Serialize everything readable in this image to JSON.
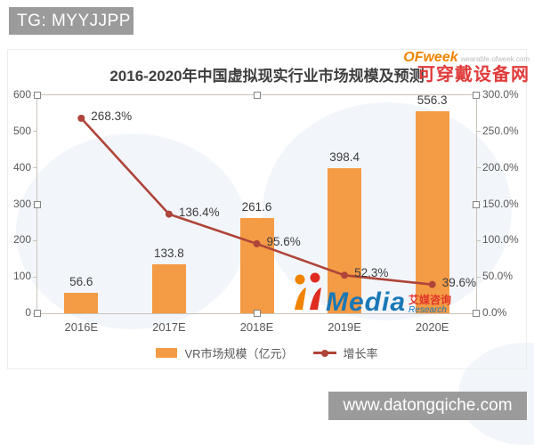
{
  "page": {
    "tg_label": "TG: MYYJJPP",
    "site_label": "www.datongqiche.com"
  },
  "watermarks": {
    "ofweek_brand": "OFweek",
    "ofweek_domain": "wearable.ofweek.com",
    "ofweek_site": "可穿戴设备网",
    "iimedia_brand": "Media",
    "iimedia_cn": "艾媒咨询",
    "iimedia_en": "Research"
  },
  "chart_data": {
    "type": "bar",
    "combo": true,
    "title": "2016-2020年中国虚拟现实行业市场规模及预测",
    "categories": [
      "2016E",
      "2017E",
      "2018E",
      "2019E",
      "2020E"
    ],
    "series": [
      {
        "name": "VR市场规模（亿元）",
        "chart_type": "bar",
        "axis": "left",
        "color": "#F49B45",
        "values": [
          56.6,
          133.8,
          261.6,
          398.4,
          556.3
        ]
      },
      {
        "name": "增长率",
        "chart_type": "line",
        "axis": "right",
        "color": "#AF4439",
        "unit": "%",
        "values": [
          268.3,
          136.4,
          95.6,
          52.3,
          39.6
        ]
      }
    ],
    "left_axis": {
      "min": 0,
      "max": 600,
      "step": 100,
      "ticks": [
        600,
        500,
        400,
        300,
        200,
        100,
        0
      ]
    },
    "right_axis": {
      "min": 0,
      "max": 300,
      "step": 50,
      "unit": "%",
      "ticks": [
        "300.0%",
        "250.0%",
        "200.0%",
        "150.0%",
        "100.0%",
        "50.0%",
        "0.0%"
      ]
    },
    "legend_position": "bottom",
    "grid": false
  }
}
